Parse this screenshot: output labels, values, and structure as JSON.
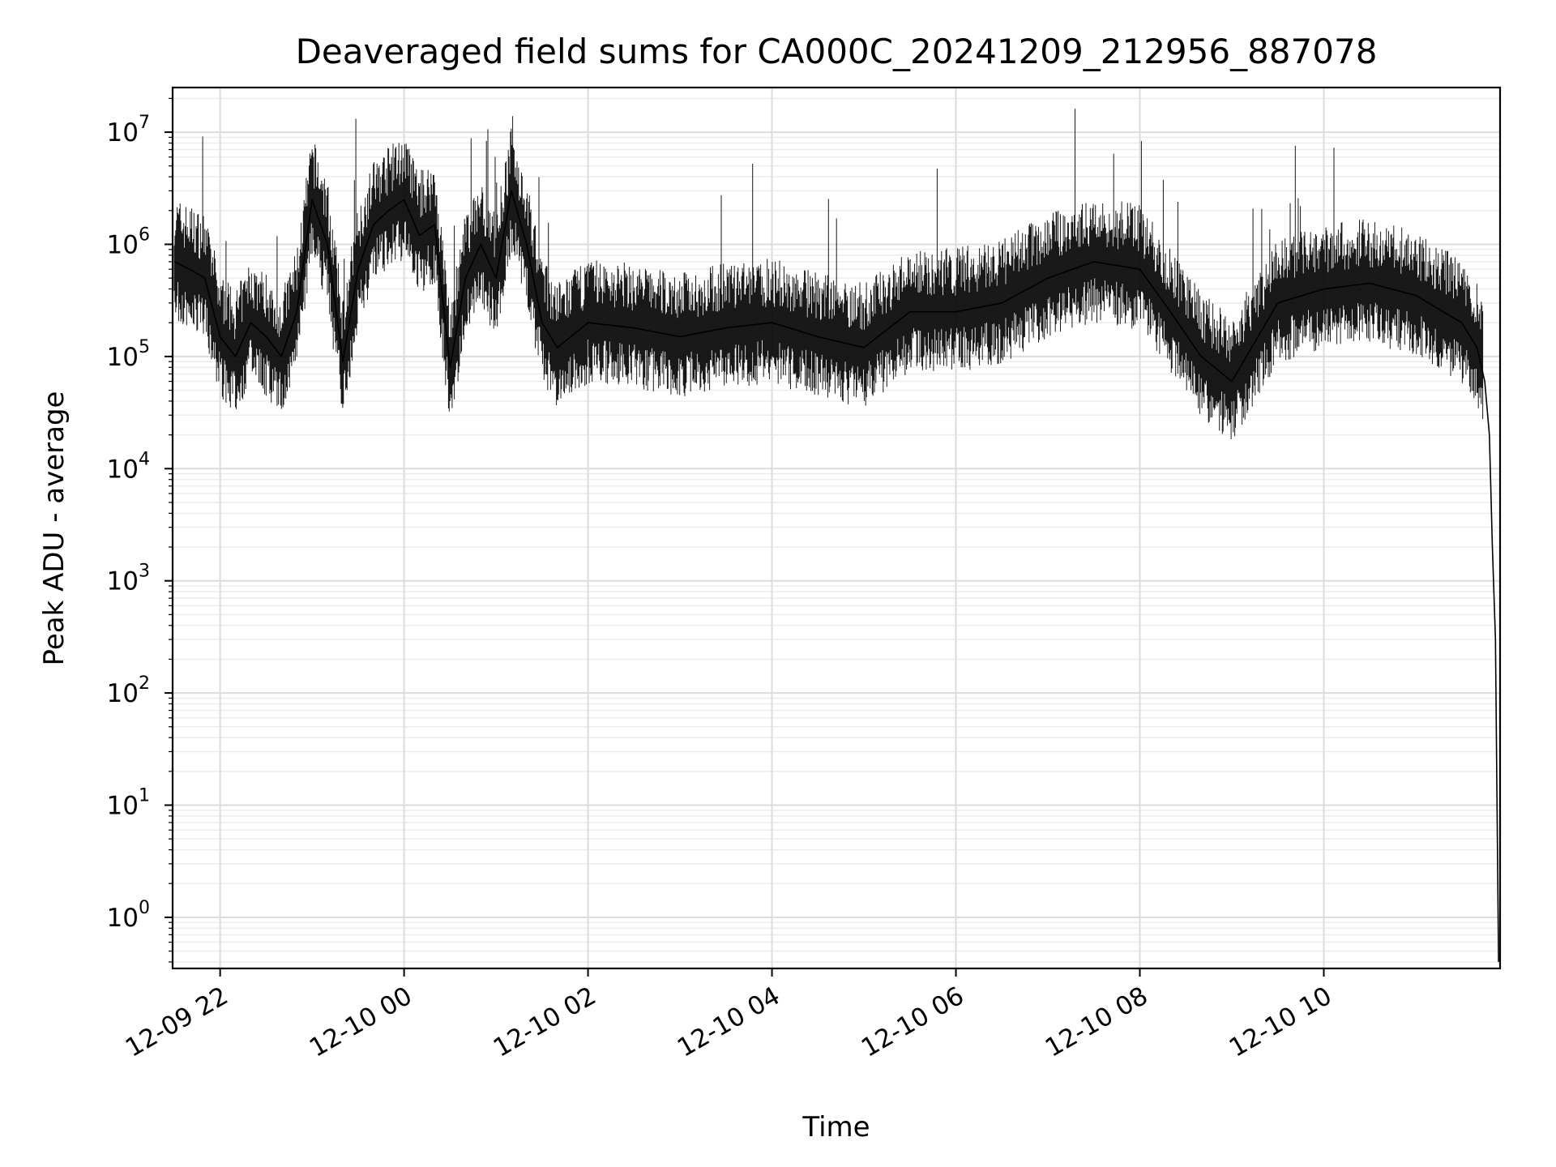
{
  "chart_data": {
    "type": "line",
    "title": "Deaveraged field sums for CA000C_20241209_212956_887078",
    "xlabel": "Time",
    "ylabel": "Peak ADU - average",
    "yscale": "log",
    "ylim": [
      0.35,
      25000000
    ],
    "xlim": [
      "2024-12-09 21:29",
      "2024-12-10 11:55"
    ],
    "grid": "both, major and minor",
    "line_color": "#000000",
    "x_ticks": [
      "12-09 22",
      "12-10 00",
      "12-10 02",
      "12-10 04",
      "12-10 06",
      "12-10 08",
      "12-10 10"
    ],
    "y_ticks": [
      {
        "base": "10",
        "exp": "0"
      },
      {
        "base": "10",
        "exp": "1"
      },
      {
        "base": "10",
        "exp": "2"
      },
      {
        "base": "10",
        "exp": "3"
      },
      {
        "base": "10",
        "exp": "4"
      },
      {
        "base": "10",
        "exp": "5"
      },
      {
        "base": "10",
        "exp": "6"
      },
      {
        "base": "10",
        "exp": "7"
      }
    ],
    "series": [
      {
        "x": [
          "2024-12-09 21:30",
          "2024-12-09 21:40",
          "2024-12-09 21:50",
          "2024-12-09 22:00",
          "2024-12-09 22:10",
          "2024-12-09 22:20",
          "2024-12-09 22:30",
          "2024-12-09 22:40",
          "2024-12-09 22:50",
          "2024-12-09 23:00",
          "2024-12-09 23:10",
          "2024-12-09 23:20",
          "2024-12-09 23:30",
          "2024-12-09 23:40",
          "2024-12-09 23:50",
          "2024-12-10 00:00",
          "2024-12-10 00:10",
          "2024-12-10 00:20",
          "2024-12-10 00:30",
          "2024-12-10 00:40",
          "2024-12-10 00:50",
          "2024-12-10 01:00",
          "2024-12-10 01:10",
          "2024-12-10 01:20",
          "2024-12-10 01:30",
          "2024-12-10 01:40",
          "2024-12-10 02:00",
          "2024-12-10 02:30",
          "2024-12-10 03:00",
          "2024-12-10 03:30",
          "2024-12-10 04:00",
          "2024-12-10 04:30",
          "2024-12-10 05:00",
          "2024-12-10 05:30",
          "2024-12-10 06:00",
          "2024-12-10 06:30",
          "2024-12-10 07:00",
          "2024-12-10 07:30",
          "2024-12-10 08:00",
          "2024-12-10 08:20",
          "2024-12-10 08:40",
          "2024-12-10 09:00",
          "2024-12-10 09:30",
          "2024-12-10 10:00",
          "2024-12-10 10:30",
          "2024-12-10 11:00",
          "2024-12-10 11:30",
          "2024-12-10 11:40",
          "2024-12-10 11:45",
          "2024-12-10 11:48",
          "2024-12-10 11:50",
          "2024-12-10 11:52",
          "2024-12-10 11:54"
        ],
        "y": [
          700000,
          600000,
          500000,
          150000,
          100000,
          200000,
          150000,
          100000,
          250000,
          2500000,
          1000000,
          90000,
          600000,
          1500000,
          2000000,
          2500000,
          1200000,
          1500000,
          80000,
          500000,
          1000000,
          500000,
          3000000,
          1000000,
          200000,
          120000,
          200000,
          180000,
          150000,
          180000,
          200000,
          150000,
          120000,
          250000,
          250000,
          300000,
          500000,
          700000,
          600000,
          250000,
          100000,
          60000,
          300000,
          400000,
          450000,
          350000,
          200000,
          120000,
          60000,
          20000,
          2000,
          300,
          0.4
        ]
      }
    ]
  }
}
